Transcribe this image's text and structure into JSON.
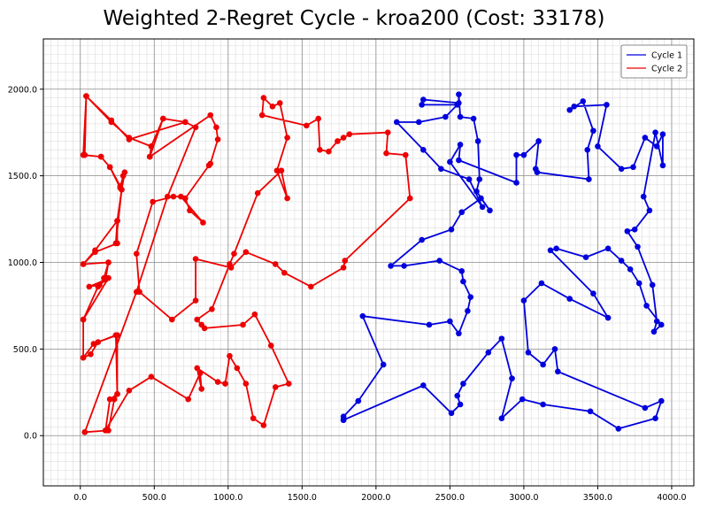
{
  "chart_data": {
    "type": "line",
    "title": "Weighted 2-Regret Cycle - kroa200 (Cost: 33178)",
    "xlabel": "",
    "ylabel": "",
    "xlim": [
      -250,
      4150
    ],
    "ylim": [
      -290,
      2290
    ],
    "xticks": [
      0,
      500,
      1000,
      1500,
      2000,
      2500,
      3000,
      3500,
      4000
    ],
    "yticks": [
      0,
      500,
      1000,
      1500,
      2000
    ],
    "xtick_labels": [
      "0.0",
      "500.0",
      "1000.0",
      "1500.0",
      "2000.0",
      "2500.0",
      "3000.0",
      "3500.0",
      "4000.0"
    ],
    "ytick_labels": [
      "0.0",
      "500.0",
      "1000.0",
      "1500.0",
      "2000.0"
    ],
    "grid": true,
    "legend_position": "top-right",
    "series": [
      {
        "name": "Cycle 1",
        "color": "#0000dd",
        "points": [
          [
            1780,
            90
          ],
          [
            1780,
            110
          ],
          [
            1880,
            200
          ],
          [
            2050,
            410
          ],
          [
            1910,
            690
          ],
          [
            2360,
            640
          ],
          [
            2500,
            660
          ],
          [
            2560,
            590
          ],
          [
            2620,
            720
          ],
          [
            2640,
            800
          ],
          [
            2590,
            890
          ],
          [
            2580,
            950
          ],
          [
            2430,
            1010
          ],
          [
            2190,
            980
          ],
          [
            2100,
            980
          ],
          [
            2310,
            1130
          ],
          [
            2510,
            1190
          ],
          [
            2580,
            1290
          ],
          [
            2710,
            1370
          ],
          [
            2770,
            1300
          ],
          [
            2680,
            1410
          ],
          [
            2700,
            1480
          ],
          [
            2690,
            1700
          ],
          [
            2660,
            1830
          ],
          [
            2570,
            1840
          ],
          [
            2560,
            1970
          ],
          [
            2560,
            1920
          ],
          [
            2320,
            1940
          ],
          [
            2310,
            1910
          ],
          [
            2550,
            1910
          ],
          [
            2470,
            1840
          ],
          [
            2290,
            1810
          ],
          [
            2140,
            1810
          ],
          [
            2320,
            1650
          ],
          [
            2440,
            1540
          ],
          [
            2630,
            1480
          ],
          [
            2720,
            1320
          ],
          [
            2500,
            1580
          ],
          [
            2570,
            1680
          ],
          [
            2560,
            1590
          ],
          [
            2950,
            1460
          ],
          [
            2950,
            1620
          ],
          [
            3000,
            1620
          ],
          [
            3100,
            1700
          ],
          [
            3080,
            1540
          ],
          [
            3090,
            1520
          ],
          [
            3440,
            1480
          ],
          [
            3430,
            1650
          ],
          [
            3470,
            1760
          ],
          [
            3400,
            1930
          ],
          [
            3310,
            1880
          ],
          [
            3340,
            1900
          ],
          [
            3560,
            1910
          ],
          [
            3500,
            1670
          ],
          [
            3660,
            1540
          ],
          [
            3740,
            1550
          ],
          [
            3820,
            1720
          ],
          [
            3900,
            1670
          ],
          [
            3940,
            1740
          ],
          [
            3940,
            1560
          ],
          [
            3890,
            1750
          ],
          [
            3810,
            1380
          ],
          [
            3850,
            1300
          ],
          [
            3750,
            1190
          ],
          [
            3700,
            1180
          ],
          [
            3770,
            1090
          ],
          [
            3870,
            870
          ],
          [
            3900,
            660
          ],
          [
            3880,
            600
          ],
          [
            3930,
            640
          ],
          [
            3830,
            750
          ],
          [
            3780,
            880
          ],
          [
            3720,
            960
          ],
          [
            3660,
            1010
          ],
          [
            3570,
            1080
          ],
          [
            3420,
            1030
          ],
          [
            3220,
            1080
          ],
          [
            3180,
            1070
          ],
          [
            3470,
            820
          ],
          [
            3570,
            680
          ],
          [
            3310,
            790
          ],
          [
            3120,
            880
          ],
          [
            3000,
            780
          ],
          [
            3030,
            480
          ],
          [
            3130,
            410
          ],
          [
            3210,
            500
          ],
          [
            3230,
            370
          ],
          [
            3820,
            160
          ],
          [
            3930,
            200
          ],
          [
            3890,
            100
          ],
          [
            3640,
            40
          ],
          [
            3450,
            140
          ],
          [
            3130,
            180
          ],
          [
            2990,
            210
          ],
          [
            2850,
            100
          ],
          [
            2920,
            330
          ],
          [
            2850,
            560
          ],
          [
            2760,
            480
          ],
          [
            2590,
            300
          ],
          [
            2550,
            230
          ],
          [
            2570,
            180
          ],
          [
            2510,
            130
          ],
          [
            2320,
            290
          ],
          [
            1780,
            90
          ]
        ]
      },
      {
        "name": "Cycle 2",
        "color": "#ee0000",
        "points": [
          [
            30,
            20
          ],
          [
            190,
            30
          ],
          [
            230,
            210
          ],
          [
            250,
            240
          ],
          [
            250,
            580
          ],
          [
            120,
            540
          ],
          [
            70,
            470
          ],
          [
            20,
            450
          ],
          [
            20,
            670
          ],
          [
            120,
            860
          ],
          [
            160,
            910
          ],
          [
            190,
            1000
          ],
          [
            20,
            990
          ],
          [
            100,
            1060
          ],
          [
            250,
            1110
          ],
          [
            250,
            1240
          ],
          [
            280,
            1420
          ],
          [
            300,
            1520
          ],
          [
            270,
            1440
          ],
          [
            200,
            1550
          ],
          [
            140,
            1610
          ],
          [
            20,
            1620
          ],
          [
            40,
            1960
          ],
          [
            210,
            1810
          ],
          [
            330,
            1720
          ],
          [
            480,
            1670
          ],
          [
            470,
            1610
          ],
          [
            560,
            1830
          ],
          [
            710,
            1810
          ],
          [
            330,
            1710
          ],
          [
            210,
            1820
          ],
          [
            40,
            1960
          ],
          [
            30,
            1620
          ],
          [
            140,
            1610
          ],
          [
            200,
            1550
          ],
          [
            270,
            1430
          ],
          [
            290,
            1500
          ],
          [
            240,
            1110
          ],
          [
            250,
            1240
          ],
          [
            100,
            1070
          ],
          [
            20,
            990
          ],
          [
            190,
            1000
          ],
          [
            170,
            900
          ],
          [
            60,
            860
          ],
          [
            130,
            870
          ],
          [
            190,
            910
          ],
          [
            20,
            670
          ],
          [
            20,
            450
          ],
          [
            90,
            530
          ],
          [
            240,
            580
          ],
          [
            250,
            240
          ],
          [
            200,
            210
          ],
          [
            170,
            30
          ],
          [
            330,
            260
          ],
          [
            480,
            340
          ],
          [
            730,
            210
          ],
          [
            810,
            360
          ],
          [
            820,
            270
          ],
          [
            790,
            390
          ],
          [
            930,
            310
          ],
          [
            980,
            300
          ],
          [
            1010,
            460
          ],
          [
            1060,
            390
          ],
          [
            1120,
            300
          ],
          [
            1170,
            100
          ],
          [
            1240,
            60
          ],
          [
            1320,
            280
          ],
          [
            1410,
            300
          ],
          [
            1290,
            520
          ],
          [
            1180,
            700
          ],
          [
            1100,
            640
          ],
          [
            840,
            620
          ],
          [
            820,
            640
          ],
          [
            790,
            670
          ],
          [
            890,
            730
          ],
          [
            1010,
            990
          ],
          [
            1040,
            1050
          ],
          [
            1200,
            1400
          ],
          [
            1360,
            1530
          ],
          [
            1400,
            1370
          ],
          [
            1330,
            1530
          ],
          [
            1400,
            1720
          ],
          [
            1350,
            1920
          ],
          [
            1300,
            1900
          ],
          [
            1240,
            1950
          ],
          [
            1230,
            1850
          ],
          [
            1530,
            1790
          ],
          [
            1610,
            1830
          ],
          [
            1620,
            1650
          ],
          [
            1680,
            1640
          ],
          [
            1740,
            1700
          ],
          [
            1780,
            1720
          ],
          [
            1820,
            1740
          ],
          [
            2080,
            1750
          ],
          [
            2070,
            1630
          ],
          [
            2200,
            1620
          ],
          [
            2230,
            1370
          ],
          [
            1790,
            1010
          ],
          [
            1780,
            970
          ],
          [
            1560,
            860
          ],
          [
            1380,
            940
          ],
          [
            1320,
            990
          ],
          [
            1120,
            1060
          ],
          [
            1020,
            970
          ],
          [
            780,
            1020
          ],
          [
            780,
            780
          ],
          [
            620,
            670
          ],
          [
            400,
            830
          ],
          [
            380,
            1050
          ],
          [
            490,
            1350
          ],
          [
            630,
            1380
          ],
          [
            680,
            1380
          ],
          [
            830,
            1230
          ],
          [
            740,
            1300
          ],
          [
            710,
            1370
          ],
          [
            870,
            1560
          ],
          [
            880,
            1570
          ],
          [
            930,
            1710
          ],
          [
            920,
            1780
          ],
          [
            880,
            1850
          ],
          [
            470,
            1610
          ],
          [
            480,
            1670
          ],
          [
            560,
            1830
          ],
          [
            710,
            1810
          ],
          [
            780,
            1780
          ],
          [
            590,
            1380
          ],
          [
            380,
            830
          ],
          [
            30,
            20
          ]
        ]
      }
    ]
  }
}
